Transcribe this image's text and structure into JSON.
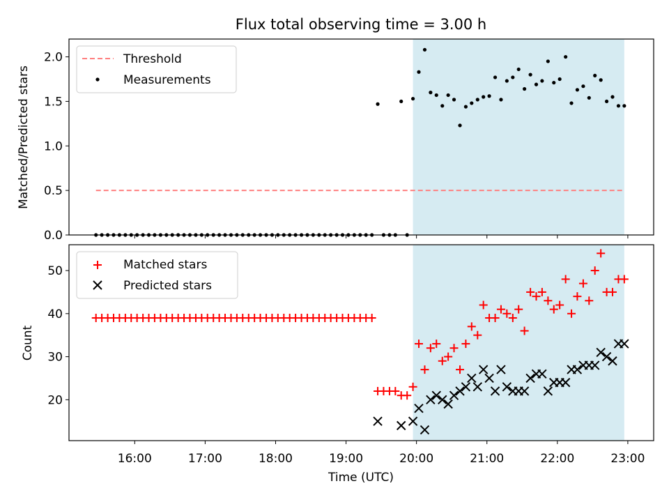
{
  "title": "Flux total observing time = 3.00 h",
  "colors": {
    "threshold": "#ff7f7f",
    "measurements": "#000000",
    "matched": "#ff0000",
    "predicted": "#000000",
    "shade": "#add8e6"
  },
  "chart_data": [
    {
      "type": "scatter",
      "ylabel": "Matched/Predicted stars",
      "xlabel": "",
      "xlim_hours": [
        15.067,
        23.367
      ],
      "ylim": [
        0.0,
        2.2
      ],
      "yticks": [
        0.0,
        0.5,
        1.0,
        1.5,
        2.0
      ],
      "ytick_labels": [
        "0.0",
        "0.5",
        "1.0",
        "1.5",
        "2.0"
      ],
      "shaded_interval_hours": [
        19.95,
        22.95
      ],
      "legend_position": "upper left",
      "legend": [
        "Threshold",
        "Measurements"
      ],
      "threshold": {
        "name": "Threshold",
        "y": 0.5,
        "x_range": [
          15.45,
          22.95
        ]
      },
      "series": [
        {
          "name": "Measurements",
          "marker": "dot",
          "x": [
            15.45,
            15.533,
            15.617,
            15.7,
            15.783,
            15.867,
            15.95,
            16.033,
            16.117,
            16.2,
            16.283,
            16.367,
            16.45,
            16.533,
            16.617,
            16.7,
            16.783,
            16.867,
            16.95,
            17.033,
            17.117,
            17.2,
            17.283,
            17.367,
            17.45,
            17.533,
            17.617,
            17.7,
            17.783,
            17.867,
            17.95,
            18.033,
            18.117,
            18.2,
            18.283,
            18.367,
            18.45,
            18.533,
            18.617,
            18.7,
            18.783,
            18.867,
            18.95,
            19.033,
            19.117,
            19.2,
            19.283,
            19.367,
            19.45,
            19.533,
            19.617,
            19.7,
            19.783,
            19.867,
            19.95,
            20.033,
            20.117,
            20.2,
            20.283,
            20.367,
            20.45,
            20.533,
            20.617,
            20.7,
            20.783,
            20.867,
            20.95,
            21.033,
            21.117,
            21.2,
            21.283,
            21.367,
            21.45,
            21.533,
            21.617,
            21.7,
            21.783,
            21.867,
            21.95,
            22.033,
            22.117,
            22.2,
            22.283,
            22.367,
            22.45,
            22.533,
            22.617,
            22.7,
            22.783,
            22.867,
            22.95
          ],
          "y": [
            0,
            0,
            0,
            0,
            0,
            0,
            0,
            0,
            0,
            0,
            0,
            0,
            0,
            0,
            0,
            0,
            0,
            0,
            0,
            0,
            0,
            0,
            0,
            0,
            0,
            0,
            0,
            0,
            0,
            0,
            0,
            0,
            0,
            0,
            0,
            0,
            0,
            0,
            0,
            0,
            0,
            0,
            0,
            0,
            0,
            0,
            0,
            0,
            1.47,
            0,
            0,
            0,
            1.5,
            0,
            1.53,
            1.83,
            2.08,
            1.6,
            1.57,
            1.45,
            1.57,
            1.52,
            1.23,
            1.44,
            1.48,
            1.52,
            1.55,
            1.56,
            1.77,
            1.52,
            1.73,
            1.77,
            1.86,
            1.64,
            1.8,
            1.69,
            1.73,
            1.95,
            1.71,
            1.75,
            2.0,
            1.48,
            1.63,
            1.67,
            1.54,
            1.79,
            1.74,
            1.5,
            1.55,
            1.45,
            1.45
          ]
        }
      ]
    },
    {
      "type": "scatter",
      "ylabel": "Count",
      "xlabel": "Time (UTC)",
      "xlim_hours": [
        15.067,
        23.367
      ],
      "ylim": [
        10.5,
        56.0
      ],
      "yticks": [
        20,
        30,
        40,
        50
      ],
      "ytick_labels": [
        "20",
        "30",
        "40",
        "50"
      ],
      "xticks_hours": [
        16,
        17,
        18,
        19,
        20,
        21,
        22,
        23
      ],
      "xtick_labels": [
        "16:00",
        "17:00",
        "18:00",
        "19:00",
        "20:00",
        "21:00",
        "22:00",
        "23:00"
      ],
      "shaded_interval_hours": [
        19.95,
        22.95
      ],
      "legend_position": "upper left",
      "legend": [
        "Matched stars",
        "Predicted stars"
      ],
      "series": [
        {
          "name": "Matched stars",
          "marker": "plus",
          "x": [
            15.45,
            15.533,
            15.617,
            15.7,
            15.783,
            15.867,
            15.95,
            16.033,
            16.117,
            16.2,
            16.283,
            16.367,
            16.45,
            16.533,
            16.617,
            16.7,
            16.783,
            16.867,
            16.95,
            17.033,
            17.117,
            17.2,
            17.283,
            17.367,
            17.45,
            17.533,
            17.617,
            17.7,
            17.783,
            17.867,
            17.95,
            18.033,
            18.117,
            18.2,
            18.283,
            18.367,
            18.45,
            18.533,
            18.617,
            18.7,
            18.783,
            18.867,
            18.95,
            19.033,
            19.117,
            19.2,
            19.283,
            19.367,
            19.45,
            19.533,
            19.617,
            19.7,
            19.783,
            19.867,
            19.95,
            20.033,
            20.117,
            20.2,
            20.283,
            20.367,
            20.45,
            20.533,
            20.617,
            20.7,
            20.783,
            20.867,
            20.95,
            21.033,
            21.117,
            21.2,
            21.283,
            21.367,
            21.45,
            21.533,
            21.617,
            21.7,
            21.783,
            21.867,
            21.95,
            22.033,
            22.117,
            22.2,
            22.283,
            22.367,
            22.45,
            22.533,
            22.617,
            22.7,
            22.783,
            22.867,
            22.95
          ],
          "y": [
            39,
            39,
            39,
            39,
            39,
            39,
            39,
            39,
            39,
            39,
            39,
            39,
            39,
            39,
            39,
            39,
            39,
            39,
            39,
            39,
            39,
            39,
            39,
            39,
            39,
            39,
            39,
            39,
            39,
            39,
            39,
            39,
            39,
            39,
            39,
            39,
            39,
            39,
            39,
            39,
            39,
            39,
            39,
            39,
            39,
            39,
            39,
            39,
            22,
            22,
            22,
            22,
            21,
            21,
            23,
            33,
            27,
            32,
            33,
            29,
            30,
            32,
            27,
            33,
            37,
            35,
            42,
            39,
            39,
            41,
            40,
            39,
            41,
            36,
            45,
            44,
            45,
            43,
            41,
            42,
            48,
            40,
            44,
            47,
            43,
            50,
            54,
            45,
            45,
            48,
            48
          ]
        },
        {
          "name": "Predicted stars",
          "marker": "x",
          "x": [
            19.45,
            19.783,
            19.95,
            20.033,
            20.117,
            20.2,
            20.283,
            20.367,
            20.45,
            20.533,
            20.617,
            20.7,
            20.783,
            20.867,
            20.95,
            21.033,
            21.117,
            21.2,
            21.283,
            21.367,
            21.45,
            21.533,
            21.617,
            21.7,
            21.783,
            21.867,
            21.95,
            22.033,
            22.117,
            22.2,
            22.283,
            22.367,
            22.45,
            22.533,
            22.617,
            22.7,
            22.783,
            22.867,
            22.95
          ],
          "y": [
            15,
            14,
            15,
            18,
            13,
            20,
            21,
            20,
            19,
            21,
            22,
            23,
            25,
            23,
            27,
            25,
            22,
            27,
            23,
            22,
            22,
            22,
            25,
            26,
            26,
            22,
            24,
            24,
            24,
            27,
            27,
            28,
            28,
            28,
            31,
            30,
            29,
            33,
            33
          ]
        }
      ]
    }
  ]
}
